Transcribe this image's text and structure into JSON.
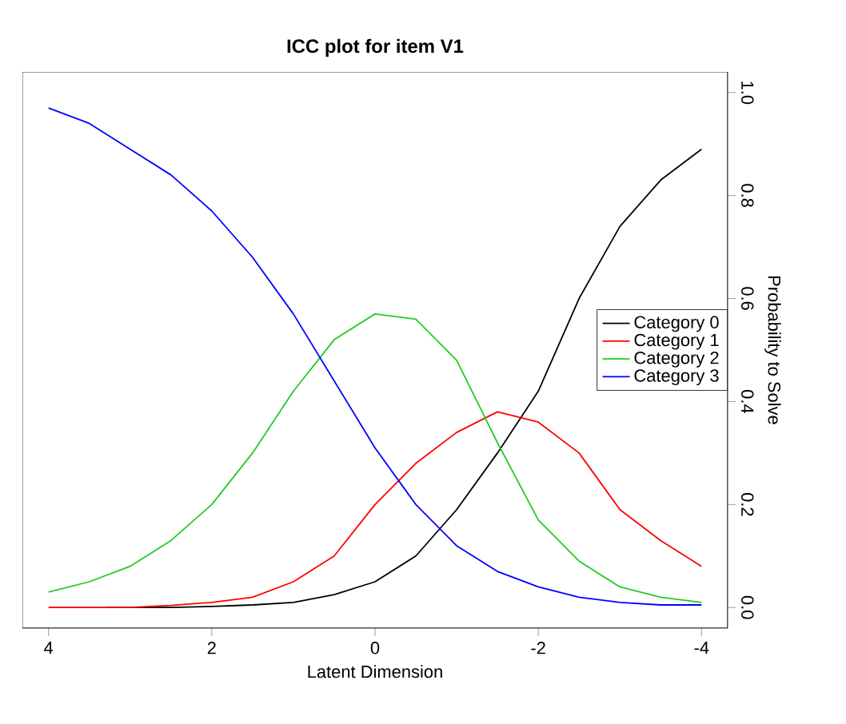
{
  "chart_data": {
    "type": "line",
    "title": "ICC plot for item V1",
    "xlabel": "Latent Dimension",
    "ylabel": "Probability to Solve",
    "x": [
      4,
      3.5,
      3,
      2.5,
      2,
      1.5,
      1,
      0.5,
      0,
      -0.5,
      -1,
      -1.5,
      -2,
      -2.5,
      -3,
      -3.5,
      -4
    ],
    "xlim": [
      4.32,
      -4.32
    ],
    "ylim": [
      -0.04,
      1.04
    ],
    "xticks": [
      4,
      2,
      0,
      -2,
      -4
    ],
    "yticks": [
      {
        "value": 0,
        "label": "0.0"
      },
      {
        "value": 0.2,
        "label": "0.2"
      },
      {
        "value": 0.4,
        "label": "0.4"
      },
      {
        "value": 0.6,
        "label": "0.6"
      },
      {
        "value": 0.8,
        "label": "0.8"
      },
      {
        "value": 1,
        "label": "1.0"
      }
    ],
    "series": [
      {
        "name": "Category 0",
        "color": "#000000",
        "x": [
          3.3,
          3,
          2.5,
          2,
          1.5,
          1,
          0.5,
          0,
          -0.5,
          -1,
          -1.5,
          -2,
          -2.5,
          -3,
          -3.5,
          -4
        ],
        "values": [
          0.0,
          0.0,
          0.0,
          0.002,
          0.005,
          0.01,
          0.025,
          0.05,
          0.1,
          0.19,
          0.3,
          0.42,
          0.6,
          0.74,
          0.83,
          0.89
        ]
      },
      {
        "name": "Category 1",
        "color": "#ff0000",
        "values": [
          0.0,
          0.0,
          0.0,
          0.004,
          0.01,
          0.02,
          0.05,
          0.1,
          0.2,
          0.28,
          0.34,
          0.38,
          0.36,
          0.3,
          0.19,
          0.13,
          0.08
        ]
      },
      {
        "name": "Category 2",
        "color": "#22cc22",
        "values": [
          0.03,
          0.05,
          0.08,
          0.13,
          0.2,
          0.3,
          0.42,
          0.52,
          0.57,
          0.56,
          0.48,
          0.32,
          0.17,
          0.09,
          0.04,
          0.02,
          0.01
        ]
      },
      {
        "name": "Category 3",
        "color": "#0000ff",
        "values": [
          0.97,
          0.94,
          0.89,
          0.84,
          0.77,
          0.68,
          0.57,
          0.44,
          0.31,
          0.2,
          0.12,
          0.07,
          0.04,
          0.02,
          0.01,
          0.005,
          0.005
        ]
      }
    ],
    "legend": "right",
    "grid": false,
    "marker": "none",
    "line_style": "solid"
  }
}
